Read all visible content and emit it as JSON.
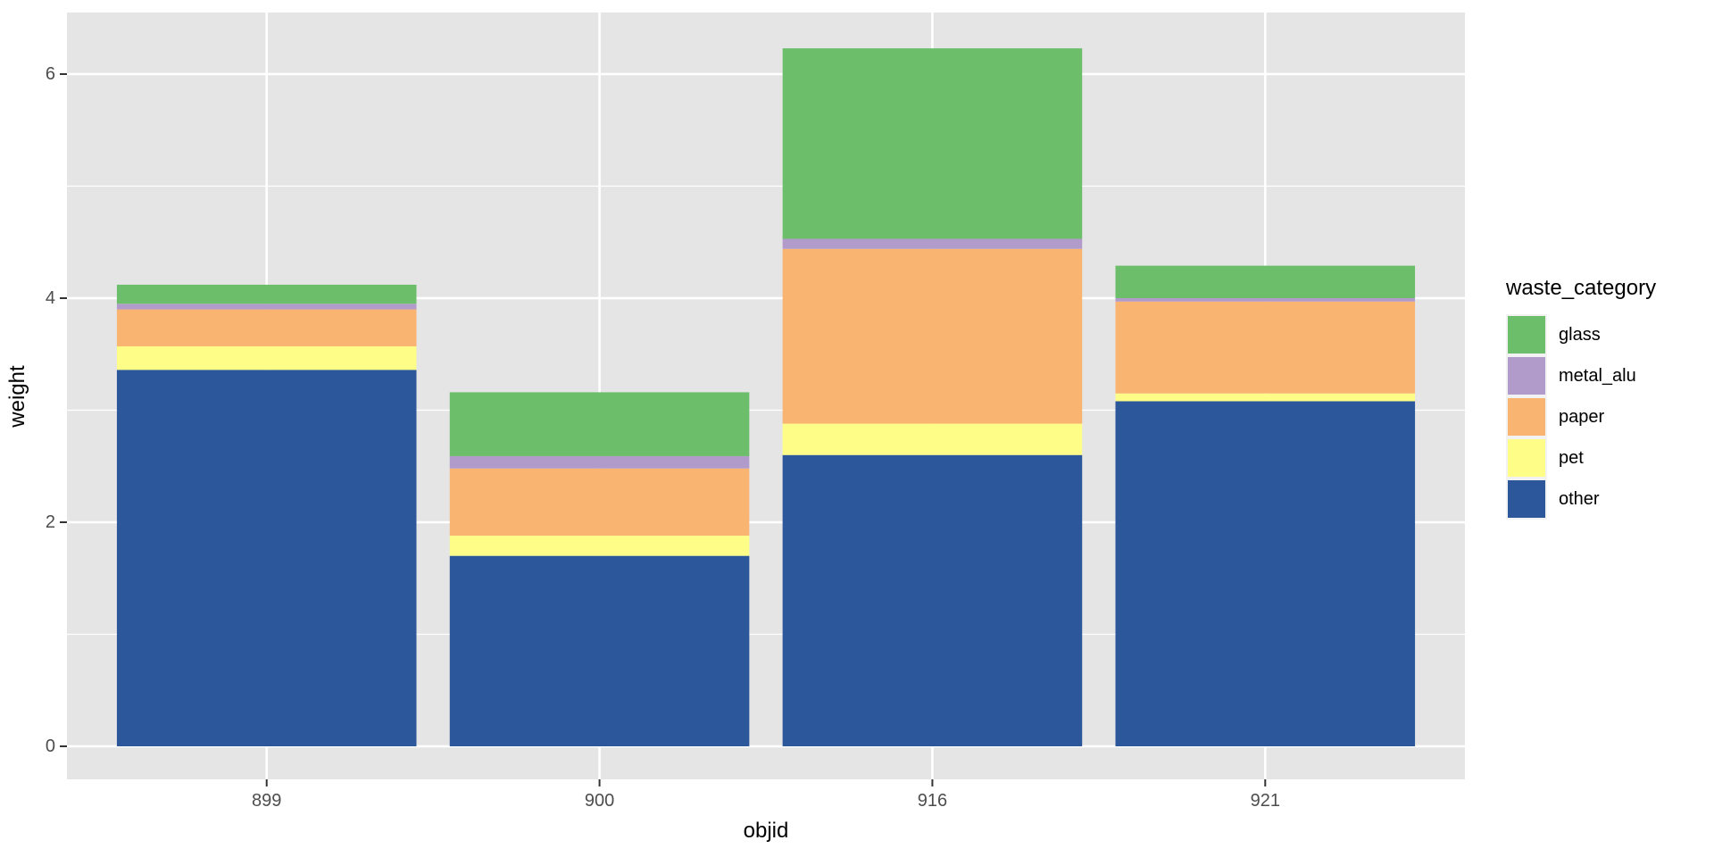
{
  "colors": {
    "panel_bg": "#E5E5E5",
    "gridline": "#FFFFFF",
    "tick_mark": "#333333",
    "tick_label": "#4D4D4D",
    "axis_title": "#000000",
    "legend_key_bg": "#F2F2F2"
  },
  "chart_data": {
    "type": "bar",
    "stacked": true,
    "title": "",
    "xlabel": "objid",
    "ylabel": "weight",
    "categories": [
      "899",
      "900",
      "916",
      "921"
    ],
    "series": [
      {
        "name": "glass",
        "color": "#6DBE6B",
        "values": [
          0.17,
          0.57,
          1.7,
          0.29
        ]
      },
      {
        "name": "metal_alu",
        "color": "#B19BCA",
        "values": [
          0.05,
          0.11,
          0.09,
          0.03
        ]
      },
      {
        "name": "paper",
        "color": "#FAB471",
        "values": [
          0.33,
          0.6,
          1.56,
          0.82
        ]
      },
      {
        "name": "pet",
        "color": "#FDFD87",
        "values": [
          0.21,
          0.18,
          0.28,
          0.07
        ]
      },
      {
        "name": "other",
        "color": "#2D579B",
        "values": [
          3.36,
          1.7,
          2.6,
          3.08
        ]
      }
    ],
    "stack_order_bottom_to_top": [
      "other",
      "pet",
      "paper",
      "metal_alu",
      "glass"
    ],
    "totals": [
      4.12,
      3.16,
      6.23,
      4.29
    ],
    "y_axis": {
      "ticks": [
        0,
        2,
        4,
        6
      ],
      "minor_ticks": [
        1,
        3,
        5
      ],
      "range_displayed": [
        -0.3,
        6.55
      ],
      "grid": true
    },
    "x_axis": {
      "grid_major_at_categories": true
    },
    "legend": {
      "title": "waste_category",
      "entries": [
        "glass",
        "metal_alu",
        "paper",
        "pet",
        "other"
      ],
      "position": "right"
    }
  }
}
